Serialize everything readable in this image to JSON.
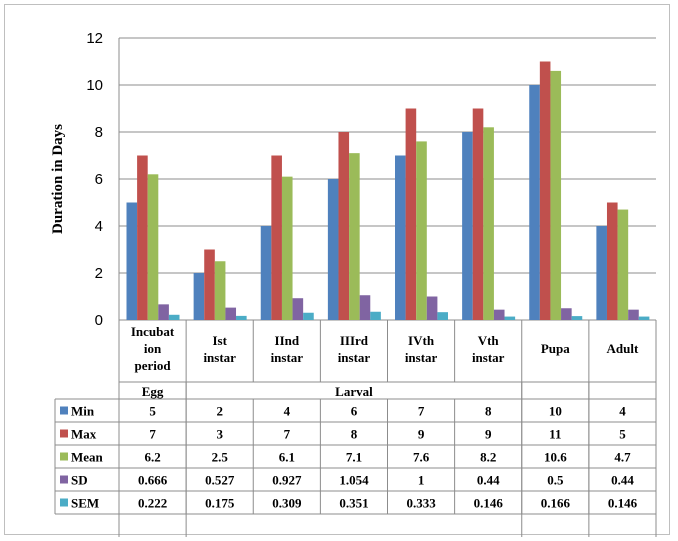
{
  "chart_data": {
    "type": "bar",
    "title": "",
    "xlabel": "",
    "ylabel": "Duration in Days",
    "ylim": [
      0,
      12
    ],
    "yticks": [
      0,
      2,
      4,
      6,
      8,
      10,
      12
    ],
    "grid": true,
    "categories": [
      "Incubation period",
      "Ist instar",
      "IInd instar",
      "IIIrd instar",
      "IVth instar",
      "Vth instar",
      "Pupa",
      "Adult"
    ],
    "category_lines": [
      [
        "Incubat",
        "ion",
        "period"
      ],
      [
        "Ist",
        "instar"
      ],
      [
        "IInd",
        "instar"
      ],
      [
        "IIIrd",
        "instar"
      ],
      [
        "IVth",
        "instar"
      ],
      [
        "Vth",
        "instar"
      ],
      [
        "Pupa"
      ],
      [
        "Adult"
      ]
    ],
    "groups": [
      {
        "label": "Egg",
        "span": [
          0,
          0
        ]
      },
      {
        "label": "Larval",
        "span": [
          1,
          5
        ]
      }
    ],
    "series": [
      {
        "name": "Min",
        "color": "#4f81bd",
        "values": [
          5,
          2,
          4,
          6,
          7,
          8,
          10,
          4
        ],
        "labels": [
          "5",
          "2",
          "4",
          "6",
          "7",
          "8",
          "10",
          "4"
        ]
      },
      {
        "name": "Max",
        "color": "#c0504d",
        "values": [
          7,
          3,
          7,
          8,
          9,
          9,
          11,
          5
        ],
        "labels": [
          "7",
          "3",
          "7",
          "8",
          "9",
          "9",
          "11",
          "5"
        ]
      },
      {
        "name": "Mean",
        "color": "#9bbb59",
        "values": [
          6.2,
          2.5,
          6.1,
          7.1,
          7.6,
          8.2,
          10.6,
          4.7
        ],
        "labels": [
          "6.2",
          "2.5",
          "6.1",
          "7.1",
          "7.6",
          "8.2",
          "10.6",
          "4.7"
        ]
      },
      {
        "name": "SD",
        "color": "#8064a2",
        "values": [
          0.666,
          0.527,
          0.927,
          1.054,
          1,
          0.44,
          0.5,
          0.44
        ],
        "labels": [
          "0.666",
          "0.527",
          "0.927",
          "1.054",
          "1",
          "0.44",
          "0.5",
          "0.44"
        ]
      },
      {
        "name": "SEM",
        "color": "#4bacc6",
        "values": [
          0.222,
          0.175,
          0.309,
          0.351,
          0.333,
          0.146,
          0.166,
          0.146
        ],
        "labels": [
          "0.222",
          "0.175",
          "0.309",
          "0.351",
          "0.333",
          "0.146",
          "0.166",
          "0.146"
        ]
      }
    ]
  }
}
